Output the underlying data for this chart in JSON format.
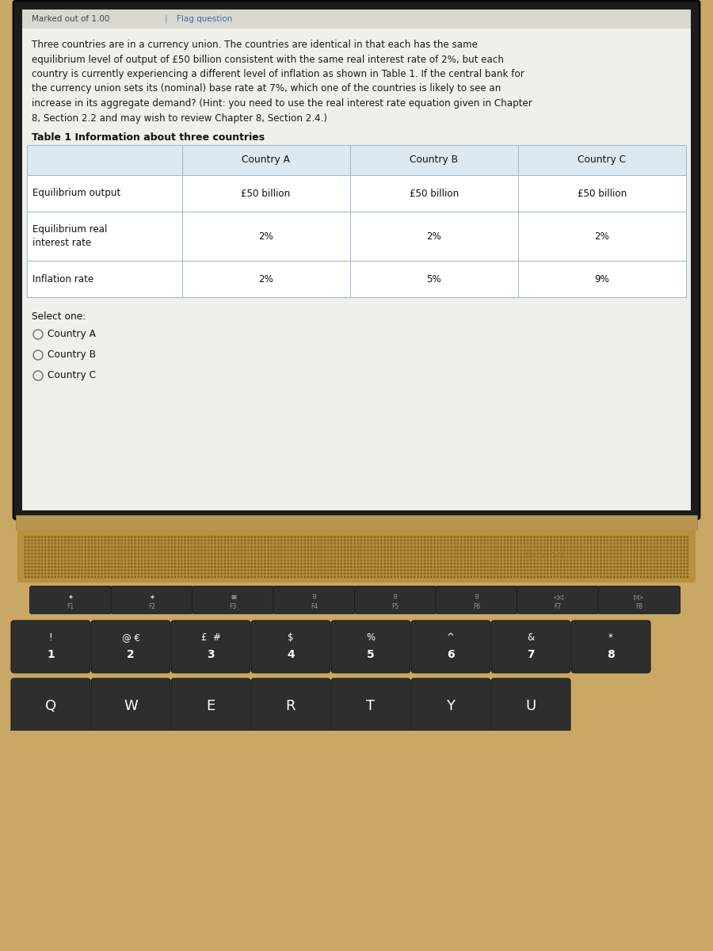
{
  "lines": [
    "Three countries are in a currency union. The countries are identical in that each has the same",
    "equilibrium level of output of £50 billion consistent with the same real interest rate of 2%, but each",
    "country is currently experiencing a different level of inflation as shown in Table 1. If the central bank for",
    "the currency union sets its (nominal) base rate at 7%, which one of the countries is likely to see an",
    "increase in its aggregate demand? (Hint: you need to use the real interest rate equation given in Chapter",
    "8, Section 2.2 and may wish to review Chapter 8, Section 2.4.)"
  ],
  "table_title": "Table 1 Information about three countries",
  "table_headers": [
    "",
    "Country A",
    "Country B",
    "Country C"
  ],
  "table_rows": [
    [
      "Equilibrium output",
      "£50 billion",
      "£50 billion",
      "£50 billion"
    ],
    [
      "Equilibrium real\ninterest rate",
      "2%",
      "2%",
      "2%"
    ],
    [
      "Inflation rate",
      "2%",
      "5%",
      "9%"
    ]
  ],
  "select_one_label": "Select one:",
  "options": [
    "Country A",
    "Country B",
    "Country C"
  ],
  "screen_bg": "#f0f0eb",
  "screen_top_text": "Marked out of 1.00",
  "screen_top_text2": "Flag question",
  "table_border_color": "#9ab8cc",
  "macbook_body_color": "#c8a864",
  "key_color": "#2e2e2e",
  "key_shadow": "#1a1a1a",
  "key_text_color": "#ffffff",
  "screen_frame_color": "#1c1c1c",
  "macbook_label": "MacBook",
  "fkeys": [
    "F1",
    "F2",
    "F3",
    "F4",
    "F5",
    "F6",
    "F7",
    "F8"
  ],
  "num_row_top": [
    "!",
    "@ €",
    "£  #",
    "$",
    "%",
    "^",
    "&",
    "*"
  ],
  "num_row_bot": [
    "1",
    "2",
    "3",
    "4",
    "5",
    "6",
    "7",
    "8"
  ],
  "letter_row": [
    "Q",
    "W",
    "E",
    "R",
    "T",
    "Y",
    "U"
  ]
}
